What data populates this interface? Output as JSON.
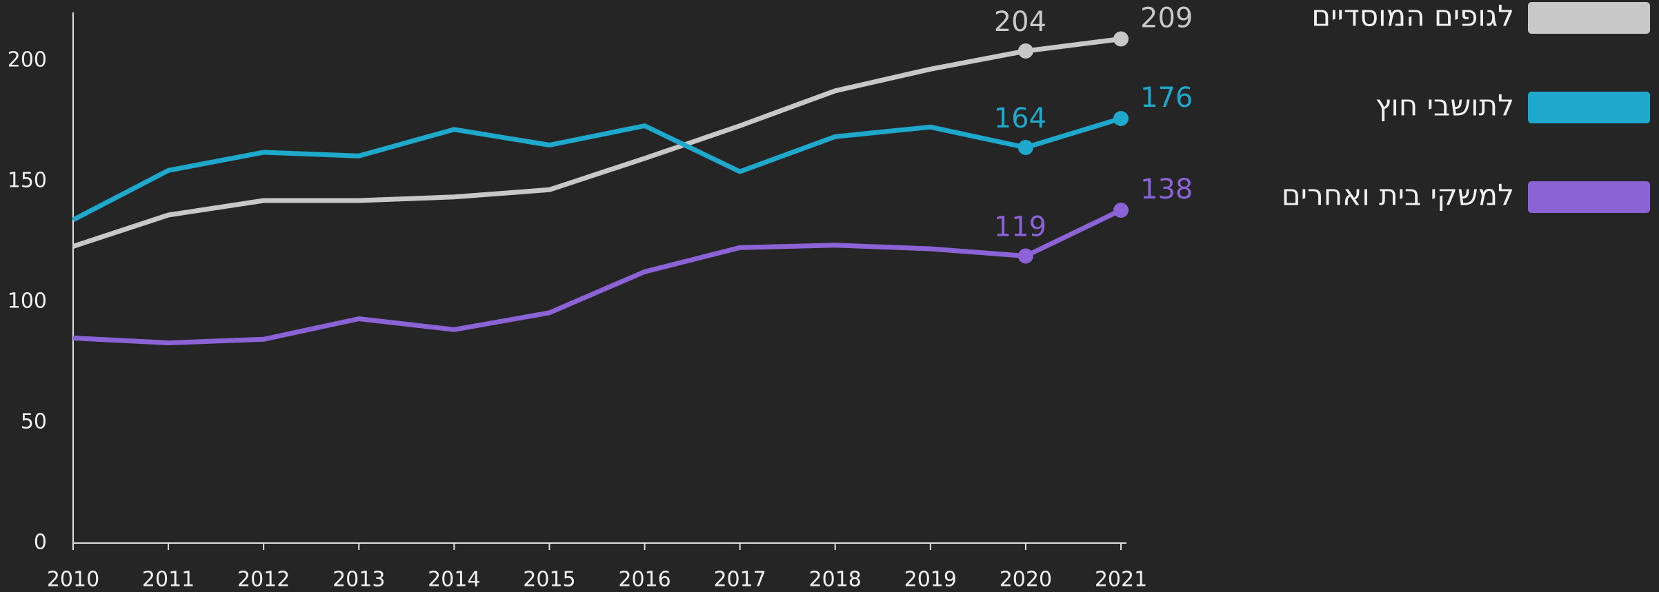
{
  "chart_data": {
    "type": "line",
    "x": [
      2010,
      2011,
      2012,
      2013,
      2014,
      2015,
      2016,
      2017,
      2018,
      2019,
      2020,
      2021
    ],
    "series": [
      {
        "name": "לגופים המוסדיים",
        "color": "#c8c8c8",
        "values": [
          123,
          136,
          142,
          142,
          143.5,
          146.5,
          159.5,
          173,
          187.5,
          196.5,
          204,
          209
        ]
      },
      {
        "name": "לתושבי חוץ",
        "color": "#1ea8cc",
        "values": [
          134,
          154.5,
          162,
          160.5,
          171.5,
          165,
          173,
          154,
          168.5,
          172.5,
          164,
          176
        ]
      },
      {
        "name": "למשקי בית ואחרים",
        "color": "#8b63d6",
        "values": [
          85,
          83,
          84.5,
          93,
          88.5,
          95.5,
          112.5,
          122.5,
          123.5,
          122,
          119,
          138
        ]
      }
    ],
    "xlim": [
      2010,
      2021
    ],
    "xticks": [
      2010,
      2011,
      2012,
      2013,
      2014,
      2015,
      2016,
      2017,
      2018,
      2019,
      2020,
      2021
    ],
    "ylim": [
      0,
      220
    ],
    "yticks": [
      0,
      50,
      100,
      150,
      200
    ],
    "grid": false,
    "legend": "right"
  }
}
